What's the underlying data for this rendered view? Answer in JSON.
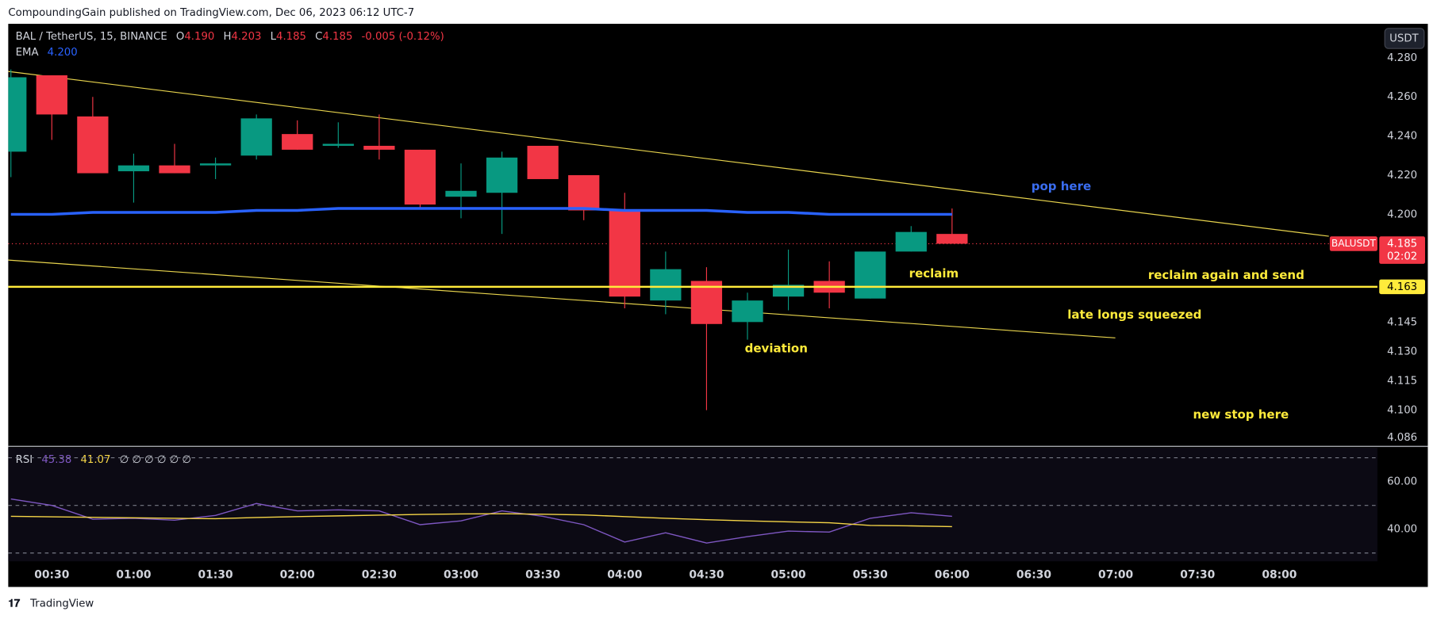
{
  "header": {
    "byline": "CompoundingGain published on TradingView.com, Dec 06, 2023 06:12 UTC-7",
    "brand": "TradingView",
    "currency_button": "USDT"
  },
  "chart_data": [
    {
      "type": "candlestick",
      "title": "BAL / TetherUS, 15, BINANCE",
      "ohlc_legend": [
        {
          "key": "O",
          "text": "4.190"
        },
        {
          "key": "H",
          "text": "4.203"
        },
        {
          "key": "L",
          "text": "4.185"
        },
        {
          "key": "C",
          "text": "4.185"
        }
      ],
      "change": "-0.005 (-0.12%)",
      "categories": [
        null,
        "00:30",
        null,
        "01:00",
        null,
        "01:30",
        null,
        "02:00",
        null,
        "02:30",
        null,
        "03:00",
        null,
        "03:30",
        null,
        "04:00",
        null,
        "04:30",
        null,
        "05:00",
        null,
        "05:30",
        null,
        "06:00",
        null,
        "06:30",
        null,
        "07:00",
        null,
        "07:30",
        null,
        "08:00"
      ],
      "open": [
        4.232,
        4.271,
        4.25,
        4.222,
        4.225,
        4.225,
        4.23,
        4.241,
        4.235,
        4.235,
        4.233,
        4.209,
        4.211,
        4.235,
        4.22,
        4.202,
        4.156,
        4.166,
        4.145,
        4.158,
        4.166,
        4.157,
        4.181,
        4.19,
        null,
        null,
        null,
        null,
        null,
        null,
        null,
        null
      ],
      "high": [
        4.274,
        4.271,
        4.26,
        4.231,
        4.236,
        4.229,
        4.251,
        4.248,
        4.247,
        4.251,
        4.233,
        4.226,
        4.232,
        4.235,
        4.22,
        4.211,
        4.181,
        4.173,
        4.16,
        4.182,
        4.176,
        4.181,
        4.194,
        4.203,
        null,
        null,
        null,
        null,
        null,
        null,
        null,
        null
      ],
      "low": [
        4.219,
        4.238,
        4.221,
        4.206,
        4.221,
        4.218,
        4.228,
        4.233,
        4.234,
        4.228,
        4.203,
        4.198,
        4.19,
        4.218,
        4.197,
        4.152,
        4.149,
        4.1,
        4.136,
        4.151,
        4.152,
        4.157,
        4.181,
        4.185,
        null,
        null,
        null,
        null,
        null,
        null,
        null,
        null
      ],
      "close": [
        4.27,
        4.251,
        4.221,
        4.225,
        4.221,
        4.226,
        4.249,
        4.233,
        4.236,
        4.233,
        4.205,
        4.212,
        4.229,
        4.218,
        4.202,
        4.158,
        4.172,
        4.144,
        4.156,
        4.164,
        4.16,
        4.181,
        4.191,
        4.185,
        null,
        null,
        null,
        null,
        null,
        null,
        null,
        null
      ],
      "up_color": "#089981",
      "down_color": "#f23645",
      "series": [
        {
          "name": "EMA",
          "color": "#2962ff",
          "legend_text": "4.200",
          "values": [
            4.2,
            4.2,
            4.201,
            4.201,
            4.201,
            4.201,
            4.202,
            4.202,
            4.203,
            4.203,
            4.203,
            4.203,
            4.203,
            4.203,
            4.203,
            4.202,
            4.202,
            4.202,
            4.201,
            4.201,
            4.2,
            4.2,
            4.2,
            4.2,
            null,
            null,
            null,
            null,
            null,
            null,
            null,
            null
          ]
        }
      ],
      "ylim": [
        4.0822,
        4.2973
      ],
      "yticks": [
        {
          "value": 4.28,
          "label": "4.280"
        },
        {
          "value": 4.26,
          "label": "4.260"
        },
        {
          "value": 4.24,
          "label": "4.240"
        },
        {
          "value": 4.22,
          "label": "4.220"
        },
        {
          "value": 4.2,
          "label": "4.200"
        },
        4.145,
        {
          "value": 4.13,
          "label": "4.130"
        },
        4.115,
        {
          "value": 4.1,
          "label": "4.100"
        },
        4.086
      ],
      "last_price": {
        "symbol": "BALUSDT",
        "label": "4.185",
        "countdown": "02:02"
      },
      "hline": {
        "value": 4.163,
        "color": "#ffeb3b"
      },
      "annotations": [
        {
          "text": "pop here",
          "color": "#3a6df0"
        },
        {
          "text": "reclaim",
          "color": "#ffeb3b"
        },
        {
          "text": "reclaim again and send",
          "color": "#ffeb3b"
        },
        {
          "text": "late longs squeezed",
          "color": "#ffeb3b"
        },
        {
          "text": "deviation",
          "color": "#ffeb3b"
        },
        {
          "text": "new stop here",
          "color": "#ffeb3b"
        }
      ]
    },
    {
      "type": "line",
      "title": "RSI",
      "legend_values": [
        "45.38",
        "41.07"
      ],
      "placeholders": "∅ ∅ ∅ ∅ ∅ ∅",
      "series": [
        {
          "color": "#7e57c2",
          "values": [
            52.7,
            50.0,
            44.2,
            44.6,
            43.8,
            45.8,
            50.8,
            47.7,
            48.1,
            47.7,
            41.9,
            43.5,
            47.7,
            45.4,
            41.9,
            34.6,
            38.5,
            34.2,
            36.9,
            39.2,
            38.8,
            44.6,
            46.9,
            45.4,
            null,
            null,
            null,
            null,
            null,
            null,
            null,
            null
          ]
        },
        {
          "color": "#f5d547",
          "values": [
            45.4,
            45.2,
            45.0,
            44.8,
            44.6,
            44.4,
            44.9,
            45.3,
            45.6,
            45.9,
            46.2,
            46.4,
            46.5,
            46.3,
            46.0,
            45.3,
            44.6,
            44.0,
            43.5,
            43.1,
            42.7,
            41.6,
            41.4,
            41.1,
            null,
            null,
            null,
            null,
            null,
            null,
            null,
            null
          ]
        }
      ],
      "ylim": [
        26.9,
        74.2
      ],
      "yticks": [
        {
          "value": 60,
          "label": "60.00"
        },
        {
          "value": 40,
          "label": "40.00"
        }
      ],
      "bands": [
        70,
        50,
        30
      ]
    }
  ]
}
